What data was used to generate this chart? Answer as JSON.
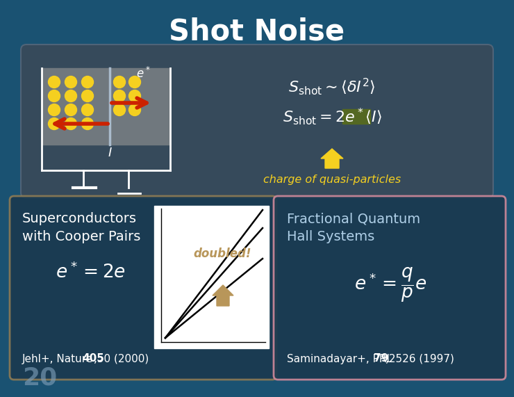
{
  "title": "Shot Noise",
  "bg_color": "#1a5272",
  "title_color": "#ffffff",
  "title_fontsize": 30,
  "yellow_color": "#f5d020",
  "red_arrow_color": "#cc2200",
  "charge_label": "charge of quasi-particles",
  "charge_color": "#f5d020",
  "left_box_border": "#8b7a55",
  "left_box_title1": "Superconductors",
  "left_box_title2": "with Cooper Pairs",
  "left_box_ref_normal": "Jehl+, Nature ",
  "left_box_ref_bold": "405",
  "left_box_ref2": ",50 (2000)",
  "doubled_label": "doubled!",
  "doubled_color": "#b8965a",
  "right_box_border": "#cc8899",
  "right_box_title1": "Fractional Quantum",
  "right_box_title2": "Hall Systems",
  "right_box_ref_normal": "Saminadayar+, PRL",
  "right_box_ref_bold": "79",
  "right_box_ref2": ",2526 (1997)",
  "slide_num": "20",
  "slide_num_color": "#7a9bb5",
  "white": "#ffffff",
  "light_blue": "#b0d0e8",
  "top_box_face": "#3a4a58",
  "top_box_edge": "#55677a",
  "left_box_face": "#1a3a50",
  "right_box_face": "#1a3a50",
  "graph_bg": "#f0f0f0",
  "highlight_color": "#5a6e1a",
  "dot_color": "#f5d020",
  "circuit_gray": "#70787e",
  "circuit_line": "#aabbcc"
}
